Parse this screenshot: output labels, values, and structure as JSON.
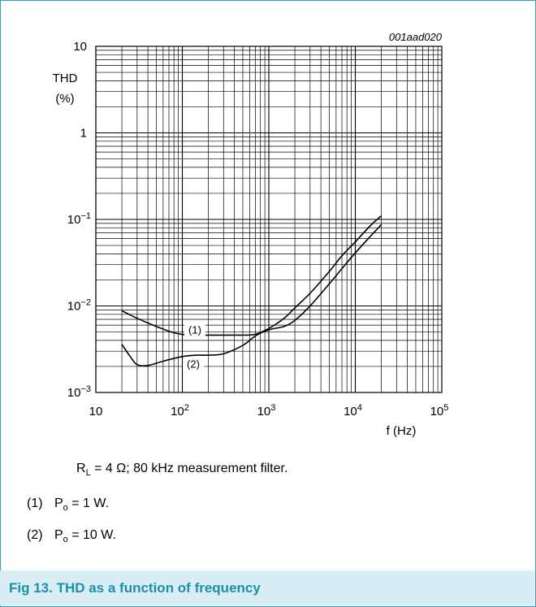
{
  "chart_data": {
    "type": "line",
    "figure_code": "001aad020",
    "ylabel": "THD",
    "ylabel_unit": "(%)",
    "xlabel": "f (Hz)",
    "x_scale": "log",
    "y_scale": "log",
    "xlim": [
      10,
      100000
    ],
    "ylim": [
      0.001,
      10
    ],
    "grid": true,
    "x_tick_labels": [
      {
        "value": 10,
        "base": "10",
        "exp": ""
      },
      {
        "value": 100,
        "base": "10",
        "exp": "2"
      },
      {
        "value": 1000,
        "base": "10",
        "exp": "3"
      },
      {
        "value": 10000,
        "base": "10",
        "exp": "4"
      },
      {
        "value": 100000,
        "base": "10",
        "exp": "5"
      }
    ],
    "y_tick_labels": [
      {
        "value": 10,
        "base": "10",
        "exp": ""
      },
      {
        "value": 1,
        "base": "1",
        "exp": ""
      },
      {
        "value": 0.1,
        "base": "10",
        "exp": "−1"
      },
      {
        "value": 0.01,
        "base": "10",
        "exp": "−2"
      },
      {
        "value": 0.001,
        "base": "10",
        "exp": "−3"
      }
    ],
    "series": [
      {
        "name": "(1)",
        "x": [
          20,
          30,
          50,
          80,
          120,
          200,
          300,
          500,
          700,
          1000,
          1500,
          2000,
          3000,
          5000,
          7000,
          10000,
          15000,
          20000
        ],
        "y": [
          0.0088,
          0.0072,
          0.0058,
          0.0049,
          0.0046,
          0.0046,
          0.0046,
          0.0046,
          0.0047,
          0.0055,
          0.0072,
          0.0095,
          0.014,
          0.025,
          0.038,
          0.055,
          0.085,
          0.11
        ]
      },
      {
        "name": "(2)",
        "x": [
          20,
          25,
          30,
          40,
          60,
          100,
          150,
          200,
          300,
          500,
          700,
          1000,
          1500,
          2000,
          3000,
          5000,
          7000,
          10000,
          15000,
          20000
        ],
        "y": [
          0.0036,
          0.0026,
          0.0021,
          0.00205,
          0.0023,
          0.0026,
          0.0027,
          0.0027,
          0.0028,
          0.0035,
          0.0045,
          0.0053,
          0.0058,
          0.0068,
          0.01,
          0.018,
          0.027,
          0.041,
          0.064,
          0.087
        ]
      }
    ],
    "curve_labels": [
      "(1)",
      "(2)"
    ]
  },
  "notes": {
    "conditions": {
      "r": "R",
      "r_sub": "L",
      "text": " = 4 Ω; 80 kHz measurement filter."
    },
    "items": [
      {
        "num": "(1)",
        "p": "P",
        "p_sub": "o",
        "text": " = 1 W."
      },
      {
        "num": "(2)",
        "p": "P",
        "p_sub": "o",
        "text": " = 10 W."
      }
    ]
  },
  "caption": "Fig 13. THD as a function of frequency",
  "colors": {
    "frame": "#3d9bb0",
    "caption_bg": "#d8eef4",
    "caption_text": "#1e8fa8",
    "grid": "#000000"
  }
}
